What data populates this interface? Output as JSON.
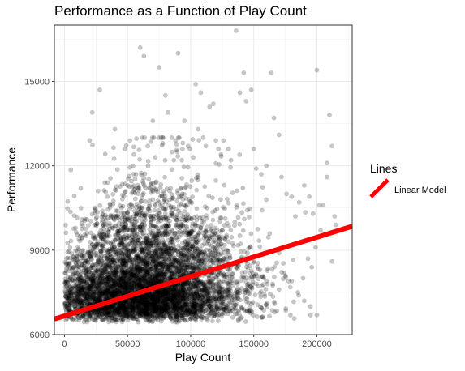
{
  "chart_data": {
    "type": "scatter",
    "title": "Performance as a Function of Play Count",
    "xlabel": "Play Count",
    "ylabel": "Performance",
    "xlim": [
      -8000,
      228000
    ],
    "ylim": [
      6000,
      17000
    ],
    "x_ticks": [
      0,
      50000,
      100000,
      150000,
      200000
    ],
    "y_ticks": [
      6000,
      9000,
      12000,
      15000
    ],
    "grid": true,
    "point_color": "#000000",
    "point_alpha": 0.22,
    "legend": {
      "title": "Lines",
      "position": "right",
      "entries": [
        {
          "label": "Linear Model",
          "color": "#ff0000"
        }
      ]
    },
    "series": [
      {
        "type": "scatter",
        "points": [
          [
            5000,
            11850
          ],
          [
            6000,
            7300
          ],
          [
            8000,
            6800
          ],
          [
            10000,
            10150
          ],
          [
            14000,
            9950
          ],
          [
            16000,
            10050
          ],
          [
            18000,
            9600
          ],
          [
            20000,
            8800
          ],
          [
            22000,
            9200
          ],
          [
            24000,
            10500
          ],
          [
            28000,
            14700
          ],
          [
            30000,
            10400
          ],
          [
            32000,
            11400
          ],
          [
            34000,
            10900
          ],
          [
            37000,
            8600
          ],
          [
            40000,
            8100
          ],
          [
            44000,
            9500
          ],
          [
            47000,
            9400
          ],
          [
            50000,
            11300
          ],
          [
            52000,
            7800
          ],
          [
            55000,
            10100
          ],
          [
            60000,
            9800
          ],
          [
            65000,
            9300
          ],
          [
            70000,
            10800
          ],
          [
            75000,
            9200
          ],
          [
            80000,
            10300
          ],
          [
            85000,
            9300
          ],
          [
            90000,
            9900
          ],
          [
            95000,
            11200
          ],
          [
            100000,
            9600
          ],
          [
            105000,
            10200
          ],
          [
            110000,
            9600
          ],
          [
            115000,
            9400
          ],
          [
            120000,
            8900
          ],
          [
            125000,
            9700
          ],
          [
            130000,
            9300
          ],
          [
            135000,
            10000
          ],
          [
            140000,
            8700
          ],
          [
            145000,
            8900
          ],
          [
            150000,
            8600
          ],
          [
            155000,
            8300
          ],
          [
            160000,
            7900
          ],
          [
            165000,
            7800
          ],
          [
            170000,
            7600
          ],
          [
            175000,
            8100
          ],
          [
            180000,
            7900
          ],
          [
            185000,
            7500
          ],
          [
            190000,
            7200
          ],
          [
            195000,
            7000
          ],
          [
            200000,
            6700
          ],
          [
            20000,
            12900
          ],
          [
            22000,
            13900
          ],
          [
            40000,
            13300
          ],
          [
            48000,
            12600
          ],
          [
            52000,
            12900
          ],
          [
            55000,
            12400
          ],
          [
            60000,
            16200
          ],
          [
            63000,
            15900
          ],
          [
            66000,
            12700
          ],
          [
            70000,
            13600
          ],
          [
            72000,
            12300
          ],
          [
            75000,
            15500
          ],
          [
            78000,
            12800
          ],
          [
            80000,
            14500
          ],
          [
            82000,
            13900
          ],
          [
            85000,
            13000
          ],
          [
            88000,
            12900
          ],
          [
            90000,
            16000
          ],
          [
            93000,
            12200
          ],
          [
            95000,
            13600
          ],
          [
            98000,
            12700
          ],
          [
            102000,
            12300
          ],
          [
            104000,
            14900
          ],
          [
            106000,
            13300
          ],
          [
            108000,
            14600
          ],
          [
            110000,
            13000
          ],
          [
            112000,
            12700
          ],
          [
            115000,
            14100
          ],
          [
            118000,
            14200
          ],
          [
            120000,
            12900
          ],
          [
            122000,
            12600
          ],
          [
            124000,
            12400
          ],
          [
            126000,
            12900
          ],
          [
            130000,
            12600
          ],
          [
            132000,
            12200
          ],
          [
            136000,
            16800
          ],
          [
            139000,
            14600
          ],
          [
            142000,
            15300
          ],
          [
            144000,
            14300
          ],
          [
            148000,
            14700
          ],
          [
            150000,
            12600
          ],
          [
            152000,
            11900
          ],
          [
            156000,
            11700
          ],
          [
            160000,
            12000
          ],
          [
            164000,
            15300
          ],
          [
            166000,
            13700
          ],
          [
            170000,
            13100
          ],
          [
            172000,
            11600
          ],
          [
            176000,
            11000
          ],
          [
            180000,
            10900
          ],
          [
            183000,
            10200
          ],
          [
            186000,
            10700
          ],
          [
            190000,
            11300
          ],
          [
            194000,
            10900
          ],
          [
            197000,
            10300
          ],
          [
            200000,
            15400
          ],
          [
            202000,
            10600
          ],
          [
            205000,
            10600
          ],
          [
            208000,
            12100
          ],
          [
            210000,
            13800
          ],
          [
            212000,
            12700
          ],
          [
            212000,
            8600
          ],
          [
            214000,
            10200
          ],
          [
            215000,
            9900
          ],
          [
            208000,
            11600
          ],
          [
            203000,
            9700
          ],
          [
            199000,
            9100
          ],
          [
            196000,
            8400
          ],
          [
            193000,
            8700
          ],
          [
            189000,
            8000
          ]
        ],
        "dense_region": {
          "x_center": 62000,
          "x_spread": 40000,
          "y_floor": 6400,
          "y_median": 7200,
          "note": "approximately 6000 additional overlapping points"
        }
      },
      {
        "name": "Linear Model",
        "type": "line",
        "color": "#ff0000",
        "x": [
          -8000,
          228000
        ],
        "y": [
          6550,
          9850
        ]
      }
    ]
  }
}
